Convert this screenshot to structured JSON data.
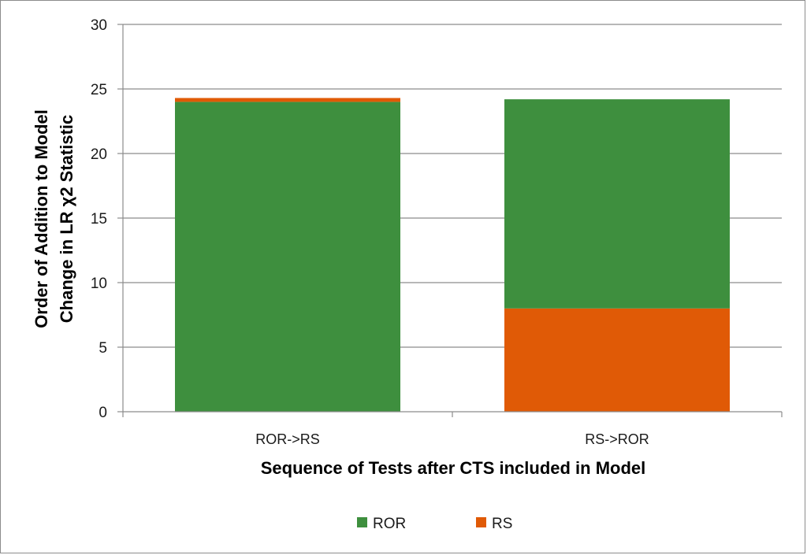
{
  "chart_data": {
    "type": "bar",
    "stacked": true,
    "categories": [
      "ROR->RS",
      "RS->ROR"
    ],
    "series": [
      {
        "name": "RS",
        "values": [
          0.3,
          8.0
        ],
        "color": "#e05a06"
      },
      {
        "name": "ROR",
        "values": [
          24.0,
          16.2
        ],
        "color": "#3e8f3e"
      }
    ],
    "stack_order": [
      [
        "ROR",
        "RS"
      ],
      [
        "RS",
        "ROR"
      ]
    ],
    "legend_order": [
      "ROR",
      "RS"
    ],
    "title": "",
    "xlabel": "Sequence of Tests after CTS included in Model",
    "ylabel_lines": [
      "Order of Addition to Model",
      "Change in LR χ2 Statistic"
    ],
    "ylim": [
      0,
      30
    ],
    "yticks": [
      "0",
      "5",
      "10",
      "15",
      "20",
      "25",
      "30"
    ],
    "grid": true,
    "legend_position": "bottom"
  }
}
